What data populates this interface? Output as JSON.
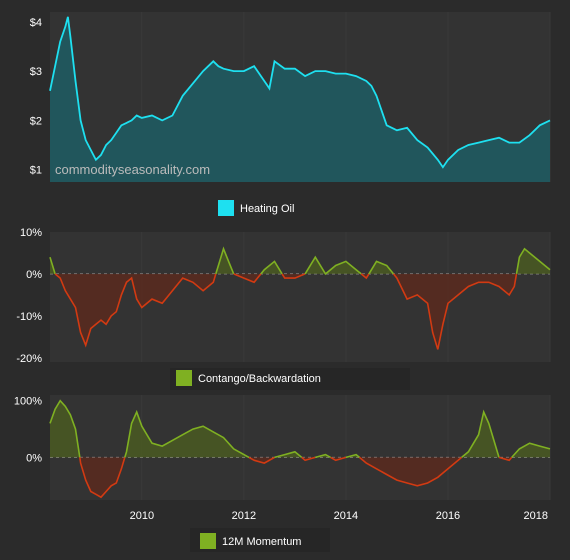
{
  "colors": {
    "background": "#2b2b2b",
    "plot_bg": "#333333",
    "grid": "#3a3a3a",
    "heating_oil": "#1ee0f0",
    "heating_fill": "#1f5a60",
    "positive": "#7fb022",
    "positive_fill": "#4a5a22",
    "negative": "#d23a12",
    "negative_fill": "#5a2a1e",
    "legend_box_bg": "#262626"
  },
  "watermark": "commodityseasonality.com",
  "chart_data": [
    {
      "type": "area",
      "name": "heating-oil",
      "legend": "Heating Oil",
      "y_ticks": [
        "$4",
        "$3",
        "$2",
        "$1"
      ],
      "y_tick_values": [
        4,
        3,
        2,
        1
      ],
      "ylim": [
        0.75,
        4.2
      ],
      "x": [
        2008.2,
        2008.3,
        2008.4,
        2008.5,
        2008.55,
        2008.6,
        2008.7,
        2008.8,
        2008.9,
        2009.0,
        2009.1,
        2009.2,
        2009.3,
        2009.4,
        2009.5,
        2009.6,
        2009.7,
        2009.8,
        2009.9,
        2010.0,
        2010.2,
        2010.4,
        2010.6,
        2010.8,
        2011.0,
        2011.2,
        2011.4,
        2011.5,
        2011.6,
        2011.8,
        2012.0,
        2012.2,
        2012.4,
        2012.5,
        2012.6,
        2012.8,
        2013.0,
        2013.2,
        2013.4,
        2013.6,
        2013.8,
        2014.0,
        2014.2,
        2014.4,
        2014.5,
        2014.6,
        2014.7,
        2014.8,
        2014.9,
        2015.0,
        2015.2,
        2015.4,
        2015.6,
        2015.8,
        2015.9,
        2016.0,
        2016.2,
        2016.4,
        2016.6,
        2016.8,
        2017.0,
        2017.2,
        2017.4,
        2017.6,
        2017.8,
        2018.0
      ],
      "values": [
        2.6,
        3.1,
        3.6,
        3.9,
        4.1,
        3.7,
        2.8,
        2.0,
        1.6,
        1.4,
        1.2,
        1.3,
        1.5,
        1.6,
        1.75,
        1.9,
        1.95,
        2.0,
        2.1,
        2.05,
        2.1,
        2.0,
        2.1,
        2.5,
        2.75,
        3.0,
        3.2,
        3.1,
        3.05,
        3.0,
        3.0,
        3.1,
        2.8,
        2.65,
        3.2,
        3.05,
        3.05,
        2.9,
        3.0,
        3.0,
        2.95,
        2.95,
        2.9,
        2.8,
        2.7,
        2.5,
        2.2,
        1.9,
        1.85,
        1.8,
        1.85,
        1.6,
        1.45,
        1.2,
        1.05,
        1.2,
        1.4,
        1.5,
        1.55,
        1.6,
        1.65,
        1.55,
        1.55,
        1.7,
        1.9,
        2.0
      ]
    },
    {
      "type": "area",
      "name": "contango-backwardation",
      "legend": "Contango/Backwardation",
      "y_ticks": [
        "10%",
        "0%",
        "-10%",
        "-20%"
      ],
      "y_tick_values": [
        10,
        0,
        -10,
        -20
      ],
      "ylim": [
        -21,
        10
      ],
      "x": [
        2008.2,
        2008.3,
        2008.4,
        2008.5,
        2008.6,
        2008.7,
        2008.8,
        2008.9,
        2009.0,
        2009.1,
        2009.2,
        2009.3,
        2009.4,
        2009.5,
        2009.6,
        2009.7,
        2009.8,
        2009.9,
        2010.0,
        2010.2,
        2010.4,
        2010.6,
        2010.8,
        2011.0,
        2011.2,
        2011.4,
        2011.5,
        2011.6,
        2011.7,
        2011.8,
        2012.0,
        2012.2,
        2012.4,
        2012.6,
        2012.8,
        2013.0,
        2013.2,
        2013.4,
        2013.6,
        2013.8,
        2014.0,
        2014.2,
        2014.4,
        2014.6,
        2014.8,
        2015.0,
        2015.2,
        2015.4,
        2015.6,
        2015.7,
        2015.8,
        2015.9,
        2016.0,
        2016.2,
        2016.4,
        2016.6,
        2016.8,
        2017.0,
        2017.2,
        2017.3,
        2017.4,
        2017.5,
        2017.6,
        2017.8,
        2018.0
      ],
      "values": [
        4,
        0,
        -1,
        -4,
        -6,
        -8,
        -14,
        -17,
        -13,
        -12,
        -11,
        -12,
        -10,
        -9,
        -5,
        -2,
        -1,
        -6,
        -8,
        -6,
        -7,
        -4,
        -1,
        -2,
        -4,
        -2,
        2,
        6,
        3,
        0,
        -1,
        -2,
        1,
        3,
        -1,
        -1,
        0,
        4,
        0,
        2,
        3,
        1,
        -1,
        3,
        2,
        -1,
        -6,
        -5,
        -7,
        -14,
        -18,
        -12,
        -7,
        -5,
        -3,
        -2,
        -2,
        -3,
        -5,
        -3,
        4,
        6,
        5,
        3,
        1
      ]
    },
    {
      "type": "area",
      "name": "12m-momentum",
      "legend": "12M Momentum",
      "y_ticks": [
        "100%",
        "0%"
      ],
      "y_tick_values": [
        100,
        0
      ],
      "ylim": [
        -75,
        110
      ],
      "x_ticks": [
        "2010",
        "2012",
        "2014",
        "2016",
        "2018"
      ],
      "x_tick_values": [
        2010,
        2012,
        2014,
        2016,
        2018
      ],
      "xlim": [
        2008.2,
        2018.0
      ],
      "x": [
        2008.2,
        2008.3,
        2008.4,
        2008.5,
        2008.6,
        2008.7,
        2008.8,
        2008.9,
        2009.0,
        2009.1,
        2009.2,
        2009.3,
        2009.4,
        2009.5,
        2009.6,
        2009.7,
        2009.8,
        2009.9,
        2010.0,
        2010.2,
        2010.4,
        2010.6,
        2010.8,
        2011.0,
        2011.2,
        2011.4,
        2011.6,
        2011.8,
        2012.0,
        2012.2,
        2012.4,
        2012.6,
        2012.8,
        2013.0,
        2013.2,
        2013.4,
        2013.6,
        2013.8,
        2014.0,
        2014.2,
        2014.4,
        2014.6,
        2014.8,
        2015.0,
        2015.2,
        2015.4,
        2015.6,
        2015.8,
        2016.0,
        2016.2,
        2016.4,
        2016.6,
        2016.7,
        2016.8,
        2016.9,
        2017.0,
        2017.2,
        2017.4,
        2017.6,
        2017.8,
        2018.0
      ],
      "values": [
        60,
        85,
        100,
        90,
        75,
        50,
        -10,
        -40,
        -60,
        -65,
        -70,
        -60,
        -50,
        -45,
        -20,
        10,
        60,
        80,
        55,
        25,
        20,
        30,
        40,
        50,
        55,
        45,
        35,
        15,
        5,
        -5,
        -10,
        0,
        5,
        10,
        -5,
        0,
        5,
        -5,
        0,
        5,
        -10,
        -20,
        -30,
        -40,
        -45,
        -50,
        -45,
        -35,
        -20,
        -5,
        10,
        40,
        80,
        60,
        30,
        0,
        -5,
        15,
        25,
        20,
        15
      ]
    }
  ]
}
